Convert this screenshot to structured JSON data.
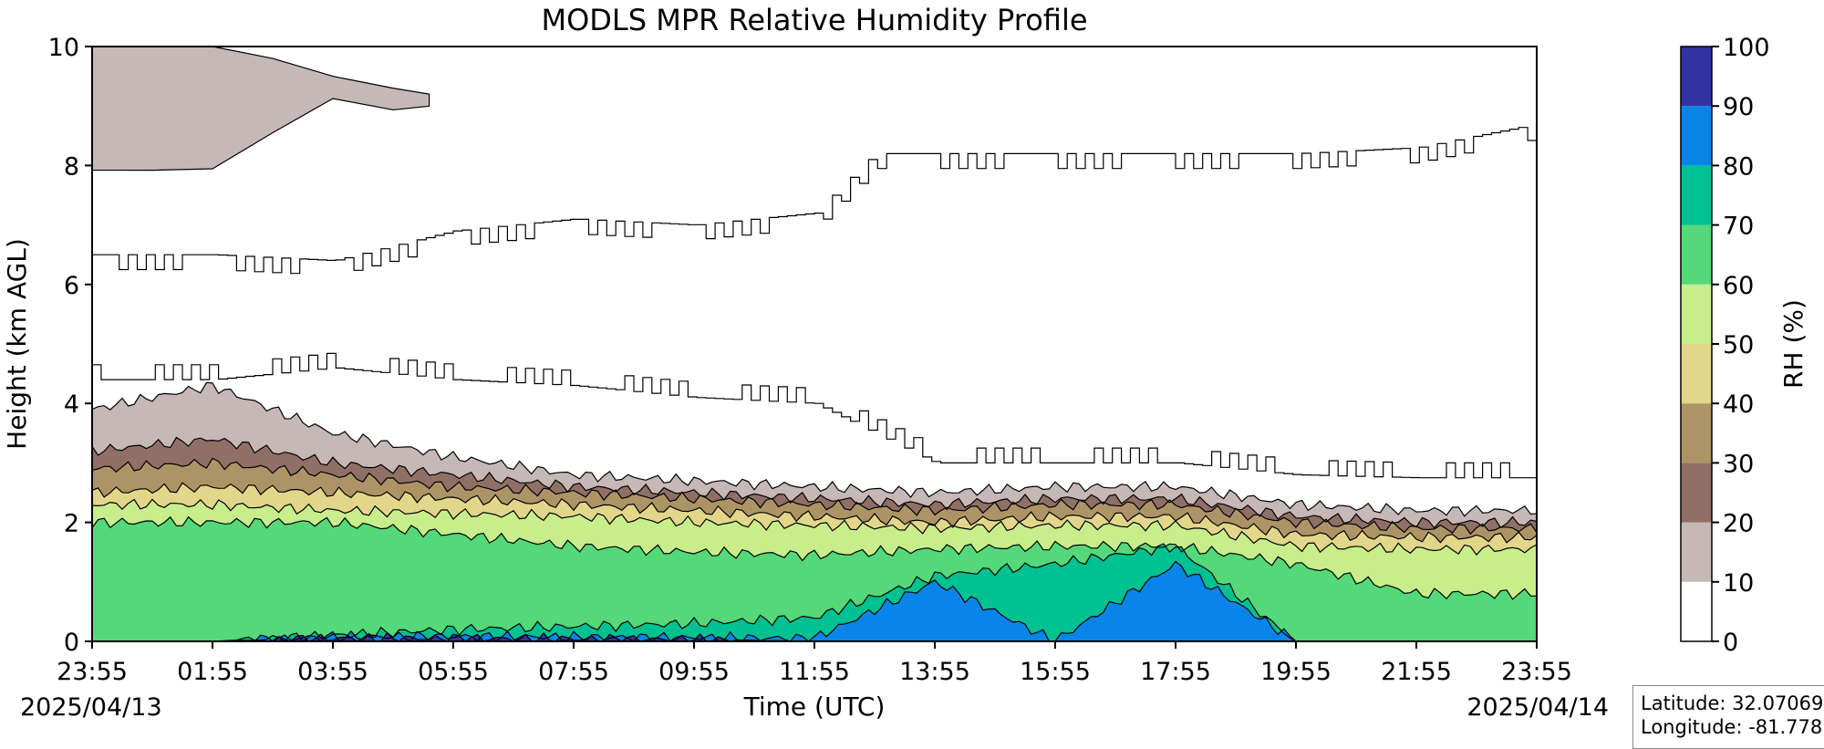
{
  "chart_data": {
    "type": "heatmap",
    "title": "MODLS MPR Relative Humidity Profile",
    "xlabel": "Time (UTC)",
    "ylabel": "Height (km AGL)",
    "colorbar_label": "RH (%)",
    "x_ticks": [
      "23:55",
      "01:55",
      "03:55",
      "05:55",
      "07:55",
      "09:55",
      "11:55",
      "13:55",
      "15:55",
      "17:55",
      "19:55",
      "21:55",
      "23:55"
    ],
    "x_range_hours": [
      0,
      24
    ],
    "start_date": "2025/04/13",
    "end_date": "2025/04/14",
    "y_ticks": [
      0,
      2,
      4,
      6,
      8,
      10
    ],
    "ylim": [
      0,
      10
    ],
    "levels": [
      0,
      10,
      20,
      30,
      40,
      50,
      60,
      70,
      80,
      90,
      100
    ],
    "level_colors": [
      "#ffffff",
      "#c6b8b6",
      "#8f6f66",
      "#ad9466",
      "#e2d68a",
      "#c8ee8c",
      "#54d879",
      "#00c191",
      "#0985ea",
      "#3432a2"
    ],
    "contour_heights": {
      "time_hours": [
        0,
        2,
        4,
        6,
        8,
        10,
        12,
        14,
        16,
        18,
        20,
        22,
        24
      ],
      "rh10": [
        3.9,
        4.3,
        3.5,
        3.1,
        2.8,
        2.7,
        2.6,
        2.5,
        2.6,
        2.6,
        2.3,
        2.2,
        2.2
      ],
      "rh20": [
        3.2,
        3.4,
        3.0,
        2.8,
        2.6,
        2.5,
        2.4,
        2.3,
        2.4,
        2.4,
        2.1,
        2.0,
        2.0
      ],
      "rh30": [
        2.9,
        3.0,
        2.8,
        2.6,
        2.5,
        2.4,
        2.3,
        2.2,
        2.3,
        2.3,
        2.0,
        1.9,
        1.9
      ],
      "rh40": [
        2.5,
        2.6,
        2.5,
        2.4,
        2.3,
        2.2,
        2.1,
        2.0,
        2.1,
        2.1,
        1.8,
        1.75,
        1.75
      ],
      "rh50": [
        2.3,
        2.3,
        2.2,
        2.15,
        2.1,
        2.0,
        1.95,
        1.9,
        1.95,
        1.95,
        1.6,
        1.55,
        1.55
      ],
      "rh60": [
        2.0,
        2.0,
        2.0,
        1.8,
        1.6,
        1.5,
        1.45,
        1.55,
        1.6,
        1.6,
        1.3,
        0.8,
        0.8
      ],
      "rh70": [
        0.0,
        0.0,
        0.1,
        0.2,
        0.25,
        0.3,
        0.4,
        1.1,
        1.3,
        1.6,
        0.0,
        0.0,
        0.0
      ],
      "rh80": [
        0.0,
        0.0,
        0.08,
        0.08,
        0.07,
        0.06,
        0.05,
        1.0,
        0.0,
        1.3,
        0.0,
        0.0,
        0.0
      ],
      "rh90": [
        0.0,
        0.0,
        0.05,
        0.05,
        0.04,
        0.03,
        0.0,
        0.0,
        0.0,
        0.0,
        0.0,
        0.0,
        0.0
      ]
    },
    "upper_moist_layer_rh10": {
      "time_hours": [
        0,
        1,
        2,
        3,
        4,
        5,
        5.6
      ],
      "top_km": [
        10,
        10,
        10,
        9.8,
        9.5,
        9.3,
        9.2
      ],
      "bottom_km": [
        7.8,
        7.7,
        8.2,
        8.6,
        8.9,
        9.0,
        9.1
      ]
    },
    "upper_contour_line_km": {
      "time_hours": [
        0,
        2,
        4,
        6,
        8,
        10,
        12,
        13,
        14,
        16,
        18,
        20,
        22,
        24
      ],
      "upper": [
        6.5,
        6.5,
        6.4,
        6.9,
        7.1,
        7.0,
        7.2,
        8.2,
        8.2,
        8.2,
        8.2,
        8.2,
        8.3,
        8.7
      ],
      "lower": [
        4.4,
        4.4,
        4.6,
        4.4,
        4.3,
        4.1,
        4.0,
        3.5,
        3.0,
        3.0,
        3.0,
        2.8,
        2.75,
        2.75
      ]
    },
    "grid": false,
    "legend": "colorbar-right"
  },
  "location": {
    "latitude_text": "Latitude: 32.07069",
    "longitude_text": "Longitude: -81.778"
  }
}
